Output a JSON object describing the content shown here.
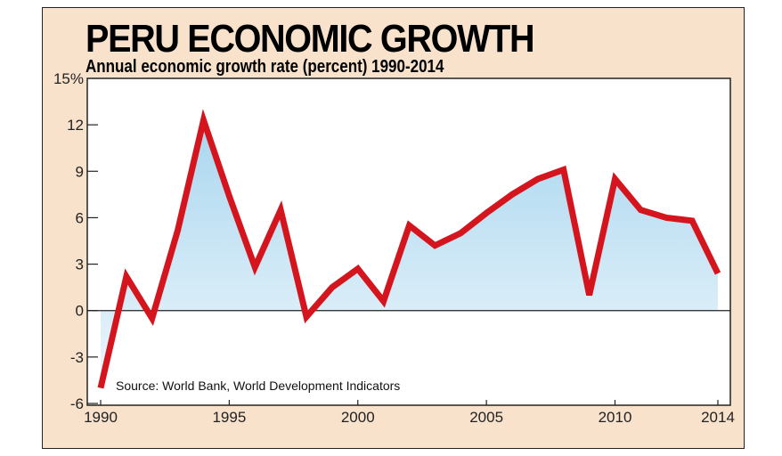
{
  "chart_data": {
    "type": "area",
    "title": "PERU ECONOMIC GROWTH",
    "subtitle": "Annual economic growth rate (percent) 1990-2014",
    "source": "Source: World Bank,  World Development Indicators",
    "x": [
      1990,
      1991,
      1992,
      1993,
      1994,
      1995,
      1996,
      1997,
      1998,
      1999,
      2000,
      2001,
      2002,
      2003,
      2004,
      2005,
      2006,
      2007,
      2008,
      2009,
      2010,
      2011,
      2012,
      2013,
      2014
    ],
    "values": [
      -5.0,
      2.2,
      -0.5,
      5.2,
      12.3,
      7.4,
      2.8,
      6.5,
      -0.4,
      1.5,
      2.7,
      0.6,
      5.5,
      4.2,
      5.0,
      6.3,
      7.5,
      8.5,
      9.1,
      1.0,
      8.5,
      6.5,
      6.0,
      5.8,
      2.4
    ],
    "xlim": [
      1990,
      2014
    ],
    "ylim": [
      -6,
      15
    ],
    "x_ticks": [
      "1990",
      "1995",
      "2000",
      "2005",
      "2010",
      "2014"
    ],
    "y_ticks": [
      "15%",
      "12",
      "9",
      "6",
      "3",
      "0",
      "-3",
      "-6"
    ],
    "y_tick_values": [
      15,
      12,
      9,
      6,
      3,
      0,
      -3,
      -6
    ],
    "x_tick_values": [
      1990,
      1995,
      2000,
      2005,
      2010,
      2014
    ],
    "grid": false,
    "colors": {
      "line": "#d4151d",
      "fill_top": "#a9d6ef",
      "fill_bottom": "#eef7fc",
      "background": "#f8e2cc"
    }
  }
}
